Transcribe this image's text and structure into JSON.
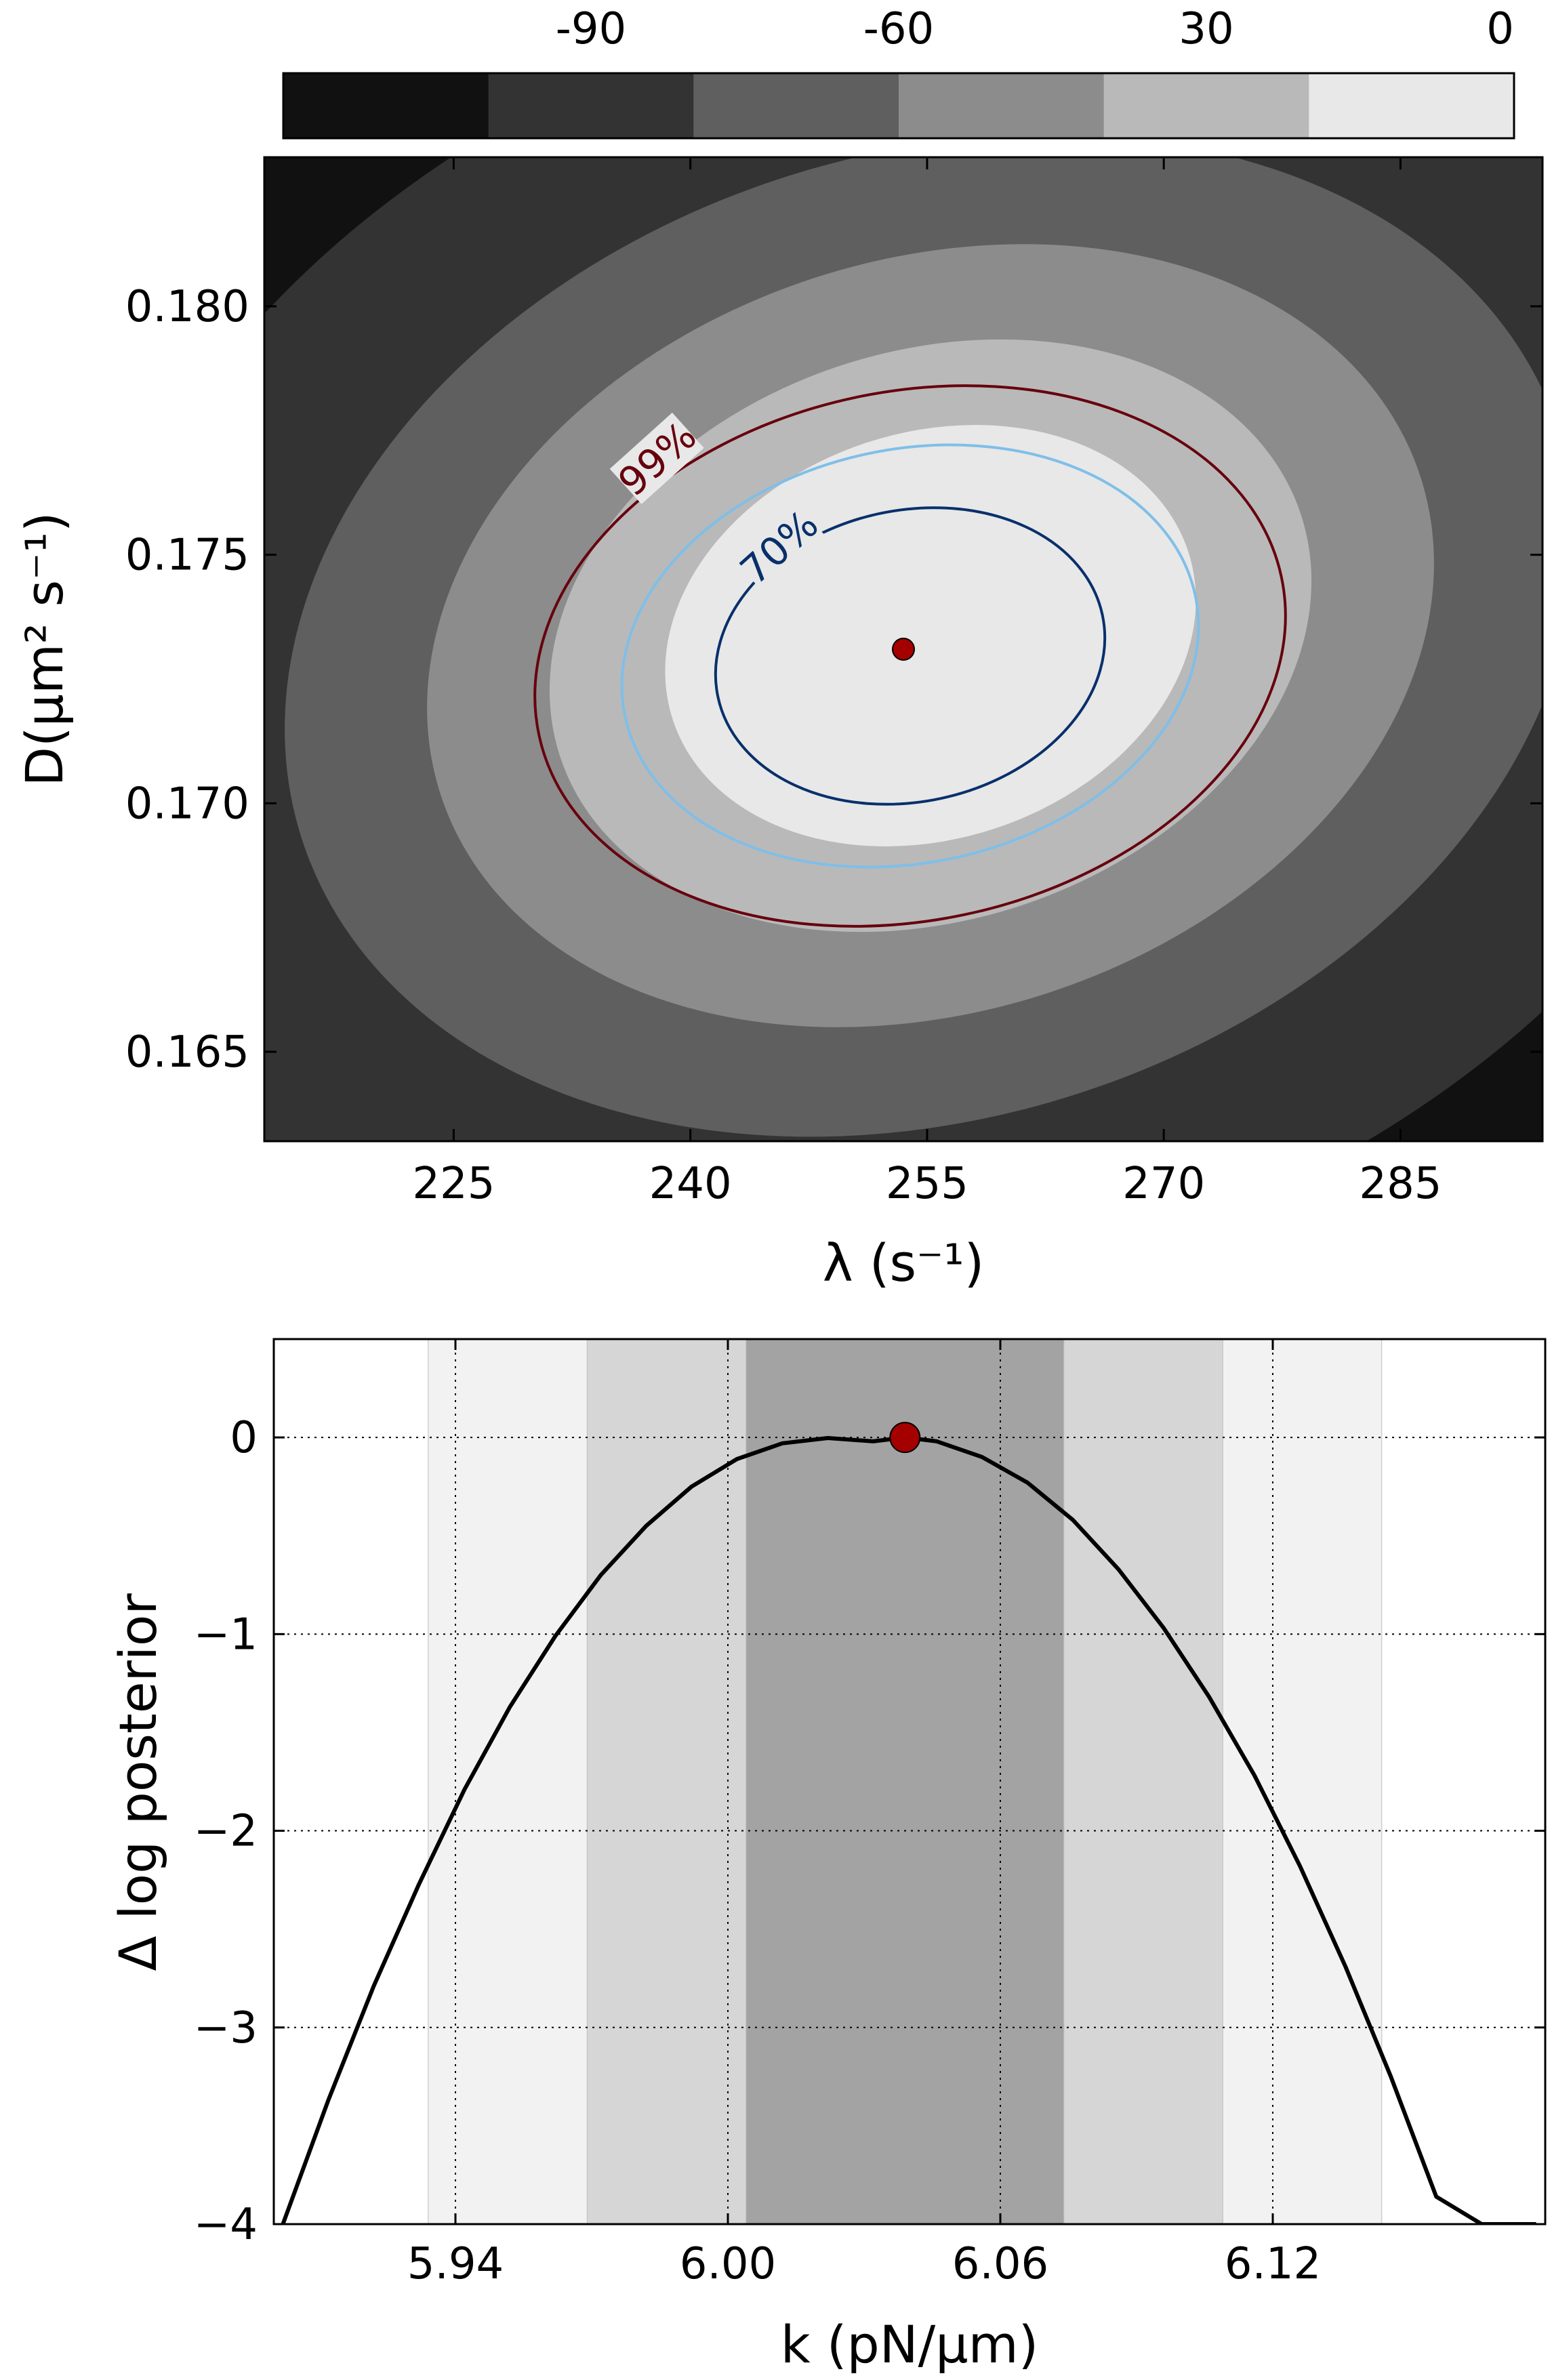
{
  "chart_data": [
    {
      "type": "heatmap",
      "title": "",
      "xlabel": "λ (s⁻¹)",
      "ylabel": "D(μm² s⁻¹)",
      "xlim": [
        213,
        294
      ],
      "ylim": [
        0.1632,
        0.183
      ],
      "x_ticks": [
        225,
        240,
        255,
        270,
        285
      ],
      "x_tick_labels": [
        "225",
        "240",
        "255",
        "270",
        "285"
      ],
      "y_ticks": [
        0.165,
        0.17,
        0.175,
        0.18
      ],
      "y_tick_labels": [
        "0.165",
        "0.170",
        "0.175",
        "0.180"
      ],
      "grid": false,
      "colorbar": {
        "position": "top",
        "tick_labels": [
          "-90",
          "-60",
          "30",
          "0"
        ],
        "levels": [
          "#111111",
          "#333333",
          "#5f5f5f",
          "#8c8c8c",
          "#b9b9b9",
          "#e8e8e8"
        ]
      },
      "maximum": {
        "x": 253.5,
        "y": 0.1731,
        "color": "#a50000"
      },
      "credible_contours": [
        {
          "label": "70%",
          "color": "#08306b",
          "label_shown": true
        },
        {
          "label": "",
          "color": "#7fbfe8",
          "label_shown": false
        },
        {
          "label": "99%",
          "color": "#67000d",
          "label_shown": true
        }
      ]
    },
    {
      "type": "line",
      "title": "",
      "xlabel": "k (pN/μm)",
      "ylabel": "Δ log posterior",
      "xlim": [
        5.9,
        6.18
      ],
      "ylim": [
        -4,
        0.5
      ],
      "x_ticks": [
        5.94,
        6.0,
        6.06,
        6.12
      ],
      "x_tick_labels": [
        "5.94",
        "6.00",
        "6.06",
        "6.12"
      ],
      "y_ticks": [
        0,
        -1,
        -2,
        -3,
        -4
      ],
      "y_tick_labels": [
        "0",
        "−1",
        "−2",
        "−3",
        "−4"
      ],
      "grid": true,
      "series": [
        {
          "x": [
            5.902,
            5.912,
            5.922,
            5.932,
            5.942,
            5.952,
            5.962,
            5.972,
            5.982,
            5.992,
            6.002,
            6.012,
            6.022,
            6.032,
            6.039,
            6.046,
            6.056,
            6.066,
            6.076,
            6.086,
            6.096,
            6.106,
            6.116,
            6.126,
            6.136,
            6.146,
            6.156,
            6.166,
            6.176,
            6.178
          ],
          "y": [
            -4.0,
            -3.37,
            -2.79,
            -2.27,
            -1.79,
            -1.37,
            -1.01,
            -0.7,
            -0.45,
            -0.25,
            -0.11,
            -0.03,
            -0.003,
            -0.02,
            0.0,
            -0.02,
            -0.1,
            -0.23,
            -0.42,
            -0.67,
            -0.97,
            -1.32,
            -1.72,
            -2.18,
            -2.69,
            -3.25,
            -3.86,
            -4.0,
            -4.0,
            -4.0
          ],
          "color": "#000000"
        }
      ],
      "maximum": {
        "x": 6.039,
        "y": 0.0,
        "color": "#a50000"
      },
      "credible_bands": [
        {
          "x_range": [
            5.934,
            6.144
          ],
          "color": "#f2f2f2"
        },
        {
          "x_range": [
            5.969,
            6.109
          ],
          "color": "#d6d6d6"
        },
        {
          "x_range": [
            6.004,
            6.074
          ],
          "color": "#a3a3a3"
        }
      ]
    }
  ]
}
